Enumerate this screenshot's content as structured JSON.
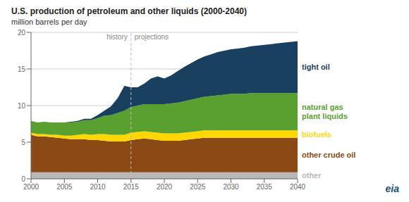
{
  "chart_data": {
    "type": "area",
    "stacked": true,
    "title": "U.S. production of petroleum and other liquids (2000-2040)",
    "y_label": "million barrels per day",
    "x": [
      2000,
      2001,
      2002,
      2003,
      2004,
      2005,
      2006,
      2007,
      2008,
      2009,
      2010,
      2011,
      2012,
      2013,
      2014,
      2015,
      2016,
      2017,
      2018,
      2019,
      2020,
      2021,
      2022,
      2023,
      2024,
      2025,
      2026,
      2027,
      2028,
      2029,
      2030,
      2031,
      2032,
      2033,
      2034,
      2035,
      2036,
      2037,
      2038,
      2039,
      2040
    ],
    "series": [
      {
        "name": "other",
        "color": "#b8b8b8",
        "values": [
          0.9,
          0.9,
          0.9,
          0.9,
          0.9,
          0.9,
          0.9,
          0.9,
          0.9,
          0.9,
          0.9,
          0.9,
          0.9,
          0.9,
          0.9,
          0.9,
          0.9,
          0.9,
          0.9,
          0.9,
          0.9,
          0.9,
          0.9,
          0.9,
          0.9,
          0.9,
          0.9,
          0.9,
          0.9,
          0.9,
          0.9,
          0.9,
          0.9,
          0.9,
          0.9,
          0.9,
          0.9,
          0.9,
          0.9,
          0.9,
          0.9
        ]
      },
      {
        "name": "other crude oil",
        "color": "#8B4A13",
        "values": [
          5.1,
          4.9,
          4.9,
          4.8,
          4.7,
          4.6,
          4.5,
          4.5,
          4.5,
          4.4,
          4.4,
          4.3,
          4.2,
          4.2,
          4.2,
          4.4,
          4.5,
          4.6,
          4.5,
          4.4,
          4.3,
          4.3,
          4.3,
          4.4,
          4.5,
          4.6,
          4.7,
          4.7,
          4.7,
          4.7,
          4.7,
          4.7,
          4.7,
          4.7,
          4.7,
          4.7,
          4.7,
          4.7,
          4.7,
          4.7,
          4.7
        ]
      },
      {
        "name": "biofuels",
        "color": "#FFD700",
        "values": [
          0.3,
          0.3,
          0.3,
          0.3,
          0.4,
          0.4,
          0.5,
          0.6,
          0.7,
          0.7,
          0.8,
          0.9,
          0.9,
          0.9,
          0.9,
          1.0,
          1.0,
          1.0,
          1.0,
          1.0,
          1.0,
          1.0,
          1.0,
          1.0,
          1.0,
          1.0,
          1.0,
          1.0,
          1.0,
          1.0,
          1.0,
          1.0,
          1.0,
          1.0,
          1.0,
          1.0,
          1.0,
          1.0,
          1.0,
          1.0,
          1.0
        ]
      },
      {
        "name": "natural gas\nplant liquids",
        "color": "#5aA030",
        "values": [
          1.6,
          1.6,
          1.7,
          1.7,
          1.7,
          1.8,
          1.8,
          1.8,
          1.9,
          2.0,
          2.2,
          2.5,
          2.7,
          3.0,
          3.3,
          3.5,
          3.6,
          3.7,
          3.8,
          3.9,
          4.0,
          4.1,
          4.2,
          4.3,
          4.4,
          4.5,
          4.6,
          4.7,
          4.8,
          4.9,
          5.0,
          5.0,
          5.0,
          5.1,
          5.1,
          5.1,
          5.1,
          5.1,
          5.1,
          5.1,
          5.1
        ]
      },
      {
        "name": "tight oil",
        "color": "#1a4060",
        "values": [
          0.0,
          0.0,
          0.0,
          0.0,
          0.0,
          0.0,
          0.1,
          0.1,
          0.2,
          0.2,
          0.4,
          0.7,
          1.2,
          2.0,
          3.4,
          2.7,
          2.5,
          2.8,
          3.5,
          3.8,
          3.5,
          3.8,
          4.3,
          4.7,
          5.0,
          5.3,
          5.5,
          5.7,
          5.9,
          6.0,
          6.1,
          6.2,
          6.3,
          6.4,
          6.5,
          6.6,
          6.7,
          6.8,
          6.9,
          7.0,
          7.1
        ]
      }
    ],
    "xlim": [
      2000,
      2040
    ],
    "xticks": [
      2000,
      2005,
      2010,
      2015,
      2020,
      2025,
      2030,
      2035,
      2040
    ],
    "ylim": [
      0,
      20
    ],
    "yticks": [
      0,
      5,
      10,
      15,
      20
    ],
    "grid": true,
    "divider": {
      "x": 2015,
      "left_text": "history",
      "right_text": "projections"
    },
    "source": "eia"
  }
}
